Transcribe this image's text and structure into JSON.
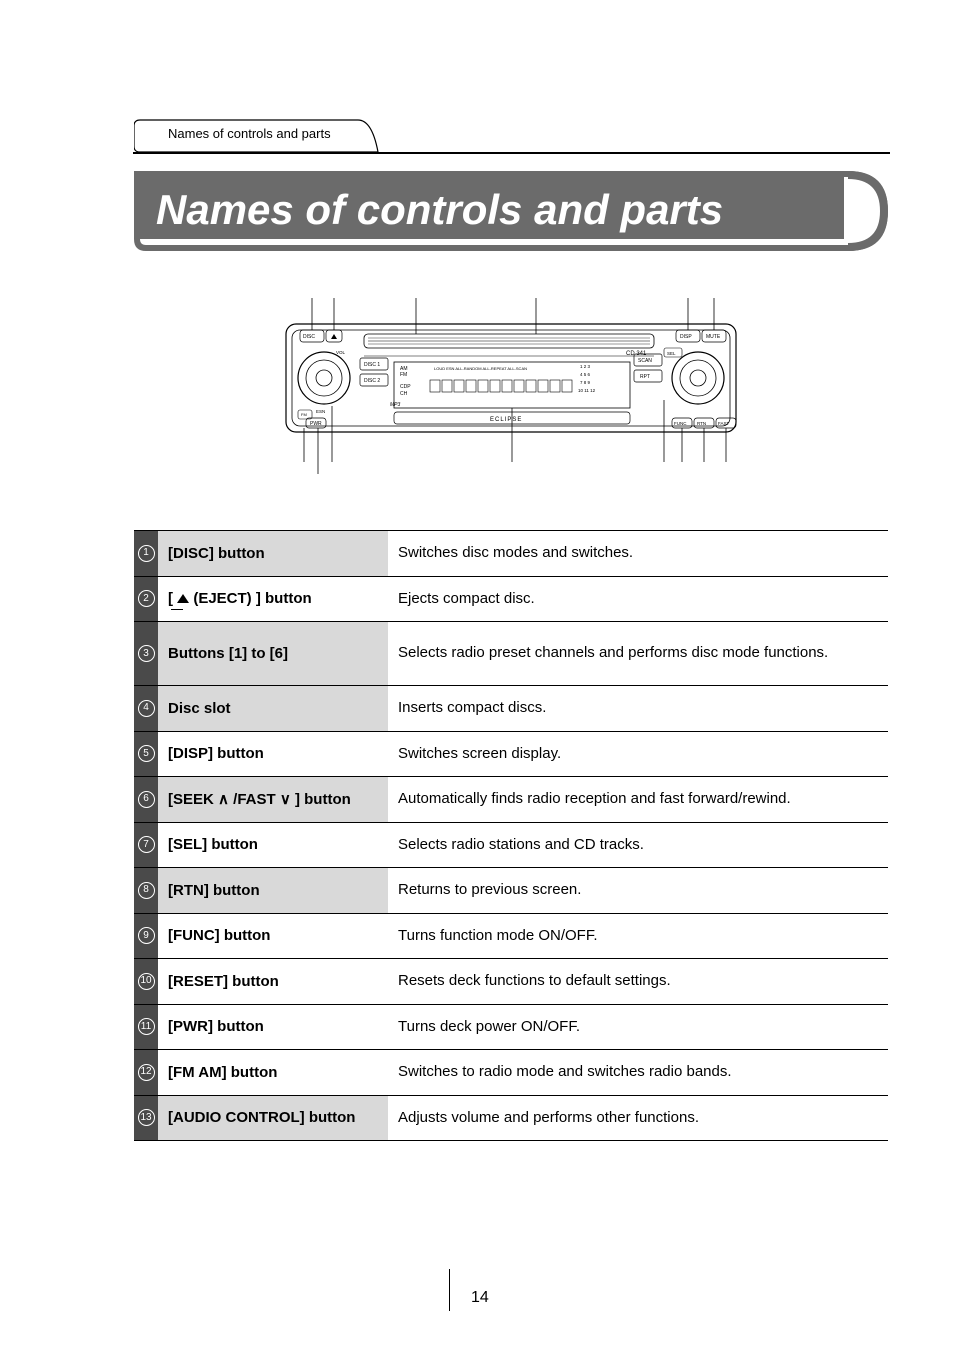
{
  "breadcrumb": "Names of controls and parts",
  "title": "Names of controls and parts",
  "page_number": "14",
  "device_model": "CD 341",
  "rows": [
    {
      "num": "1",
      "name": "[DISC] button",
      "desc": "Switches disc modes and switches.",
      "shade": true
    },
    {
      "num": "2",
      "name_html": "eject",
      "name_suffix": "(EJECT) ] button",
      "name_prefix": "[ ",
      "desc": "Ejects compact disc.",
      "shade": false
    },
    {
      "num": "3",
      "name": "Buttons [1] to [6]",
      "desc": "Selects radio preset channels and performs disc mode functions.",
      "shade": true,
      "tall": true,
      "justify": true
    },
    {
      "num": "4",
      "name": "Disc slot",
      "desc": "Inserts compact discs.",
      "shade": true
    },
    {
      "num": "5",
      "name": "[DISP] button",
      "desc": "Switches screen display.",
      "shade": false
    },
    {
      "num": "6",
      "name": "[SEEK ∧ /FAST ∨ ] button",
      "desc": "Automatically finds radio reception and fast forward/rewind.",
      "shade": true
    },
    {
      "num": "7",
      "name": "[SEL] button",
      "desc": "Selects radio stations and CD tracks.",
      "shade": false
    },
    {
      "num": "8",
      "name": "[RTN] button",
      "desc": "Returns to previous screen.",
      "shade": true
    },
    {
      "num": "9",
      "name": "[FUNC] button",
      "desc": "Turns function mode ON/OFF.",
      "shade": false
    },
    {
      "num": "10",
      "name": "[RESET] button",
      "desc": "Resets deck functions to default settings.",
      "shade": false
    },
    {
      "num": "11",
      "name": "[PWR] button",
      "desc": "Turns deck power ON/OFF.",
      "shade": false
    },
    {
      "num": "12",
      "name": "[FM AM] button",
      "desc": "Switches to radio mode and switches radio bands.",
      "shade": false
    },
    {
      "num": "13",
      "name": "[AUDIO CONTROL] button",
      "desc": "Adjusts volume and performs other functions.",
      "shade": true
    }
  ],
  "colors": {
    "num_bg": "#4a4a4a",
    "shade_bg": "#d9d9d9",
    "title_bg": "#6b6b6b"
  }
}
